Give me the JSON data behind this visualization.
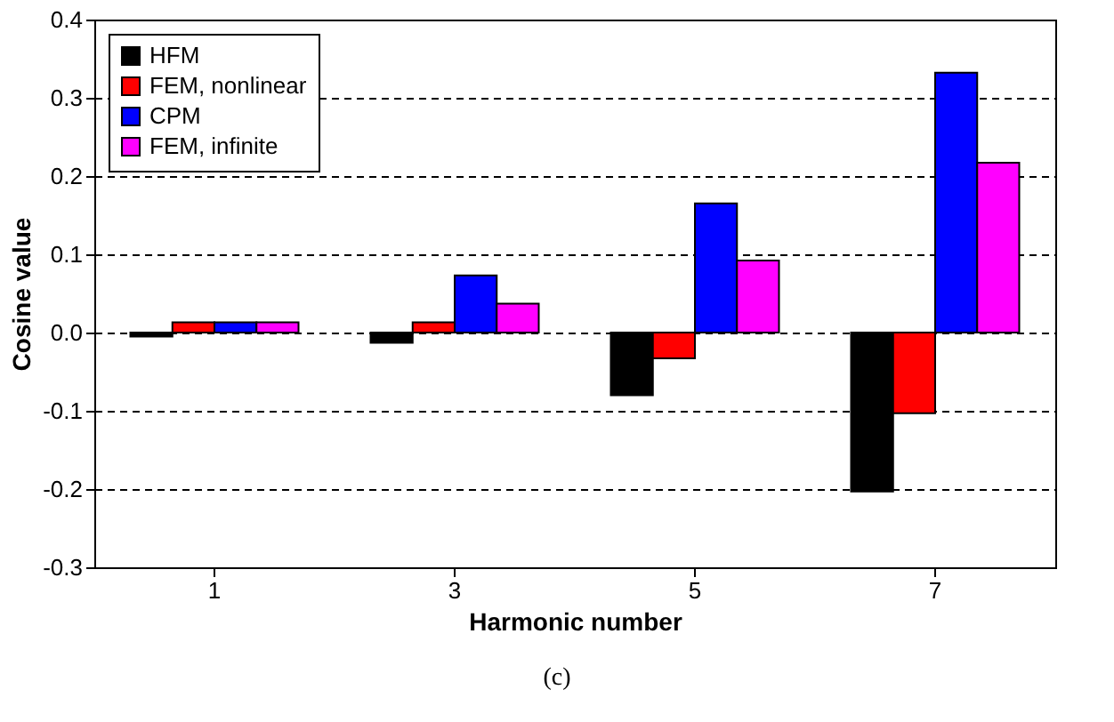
{
  "chart_data": {
    "type": "bar",
    "xlabel": "Harmonic number",
    "ylabel": "Cosine value",
    "categories": [
      "1",
      "3",
      "5",
      "7"
    ],
    "series": [
      {
        "name": "HFM",
        "color": "#000000",
        "values": [
          -0.005,
          -0.013,
          -0.08,
          -0.203
        ]
      },
      {
        "name": "FEM, nonlinear",
        "color": "#ff0000",
        "values": [
          0.013,
          0.013,
          -0.033,
          -0.103
        ]
      },
      {
        "name": "CPM",
        "color": "#0000ff",
        "values": [
          0.013,
          0.073,
          0.165,
          0.332
        ]
      },
      {
        "name": "FEM, infinite",
        "color": "#ff00ff",
        "values": [
          0.013,
          0.037,
          0.092,
          0.217
        ]
      }
    ],
    "ylim": [
      -0.3,
      0.4
    ],
    "yticks": [
      -0.3,
      -0.2,
      -0.1,
      {
        "value": 0,
        "label": "0.0"
      },
      0.1,
      0.2,
      0.3,
      0.4
    ],
    "grid": "y",
    "legend": "top left",
    "annotations": [
      "(c)"
    ]
  }
}
